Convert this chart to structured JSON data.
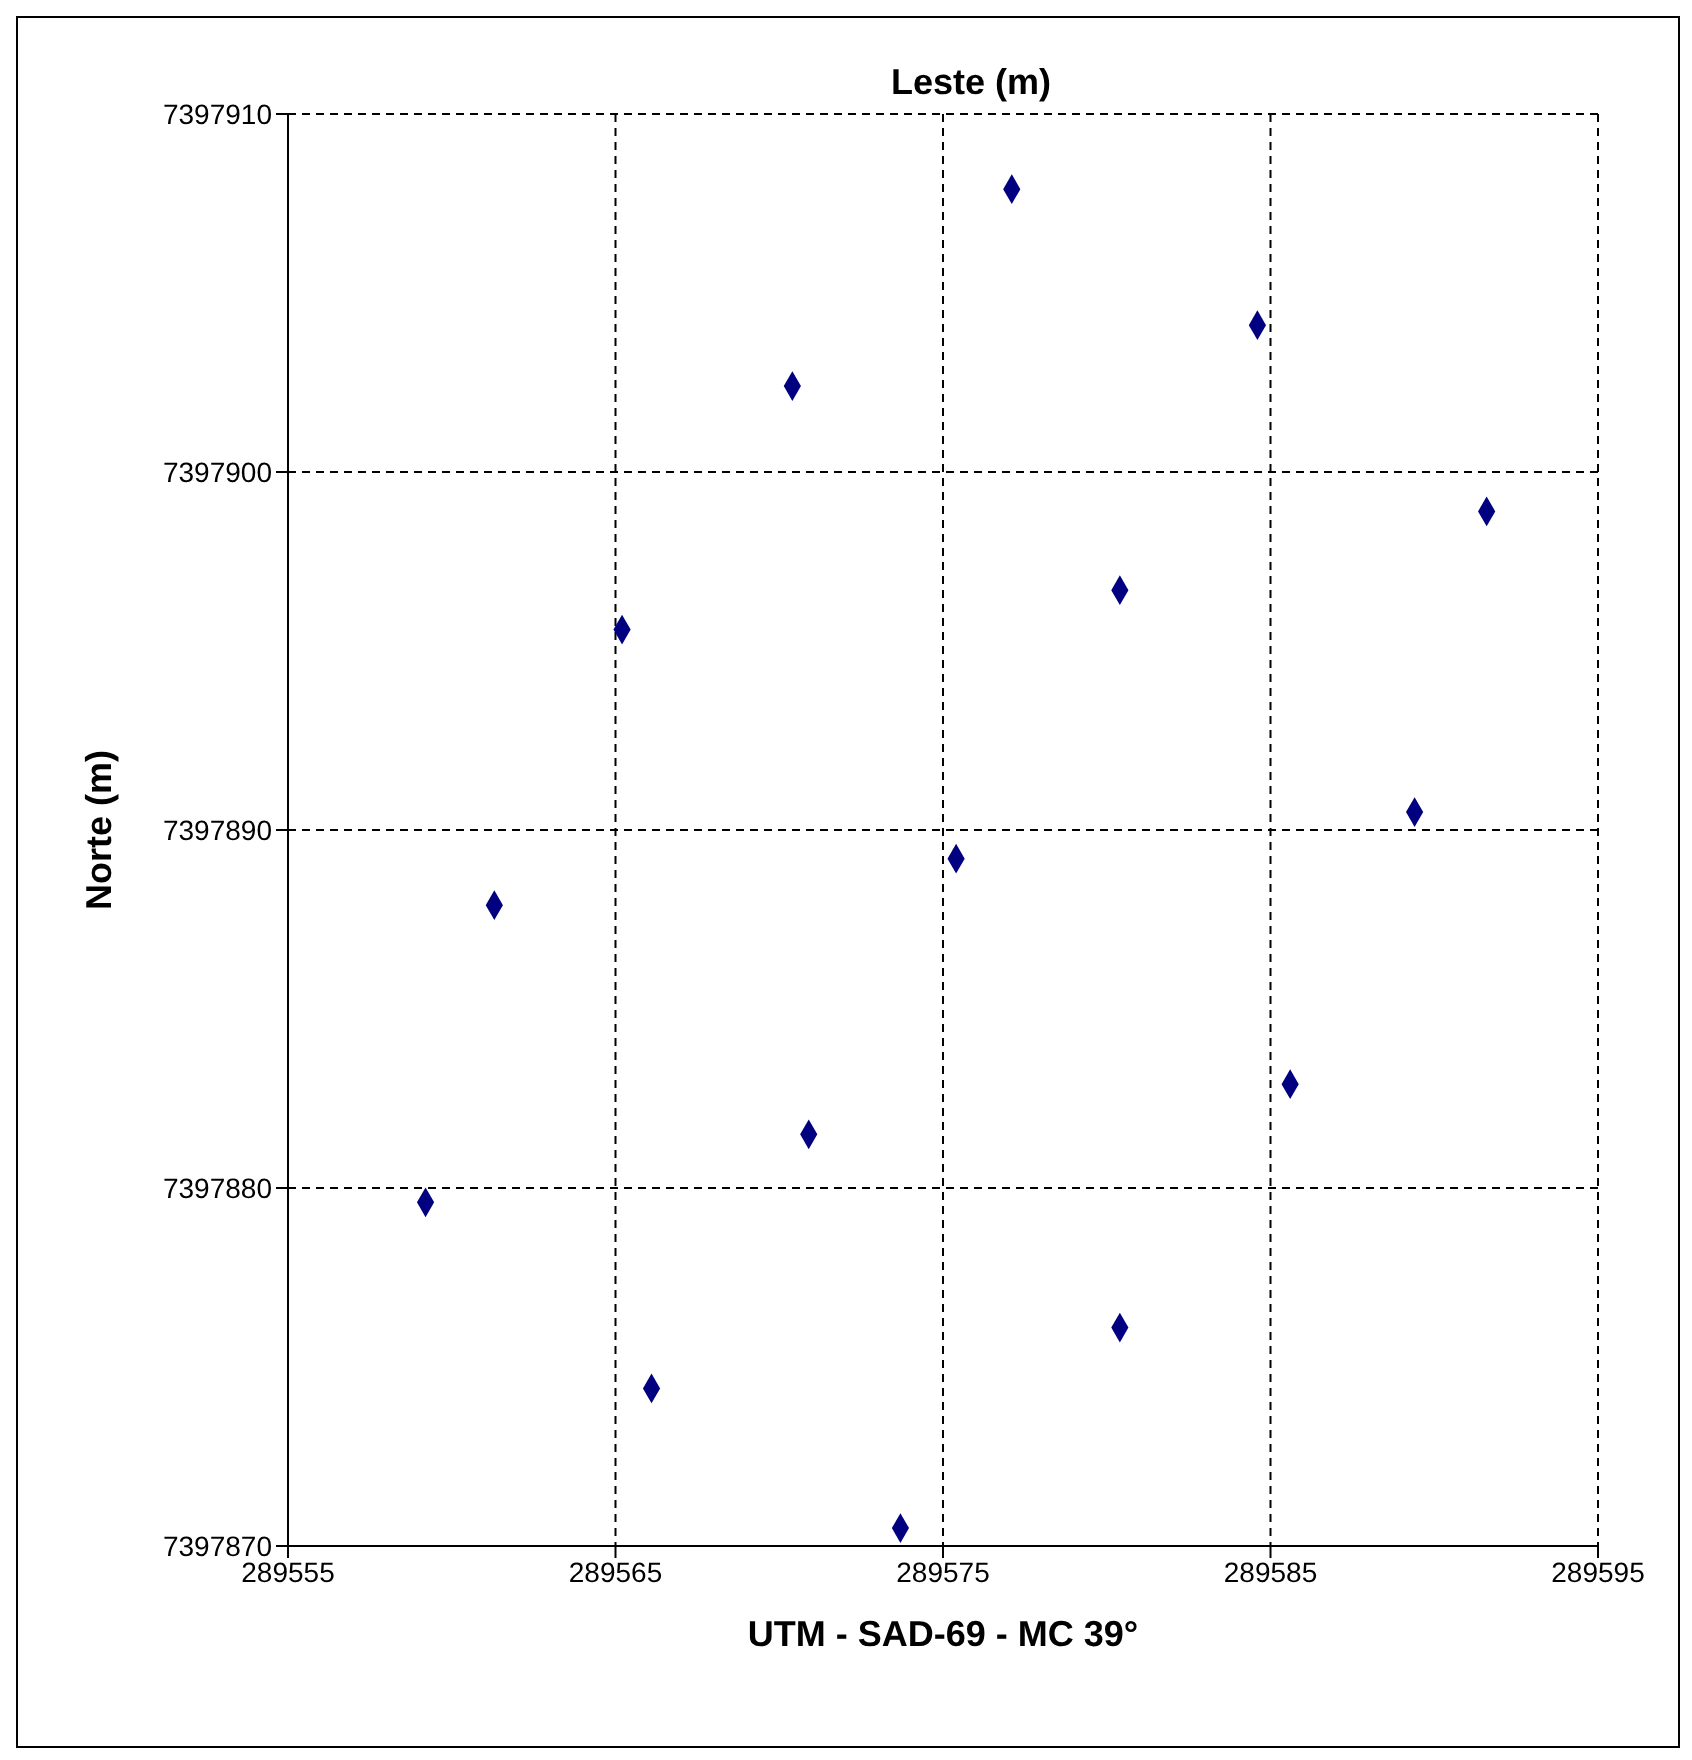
{
  "chart_data": {
    "type": "scatter",
    "title": "Leste (m)",
    "xlabel": "UTM - SAD-69 - MC 39°",
    "ylabel": "Norte (m)",
    "x": [
      289559.2,
      289561.3,
      289565.2,
      289566.1,
      289570.4,
      289570.9,
      289573.7,
      289575.4,
      289577.1,
      289580.4,
      289580.4,
      289584.6,
      289585.6,
      289589.4,
      289591.6
    ],
    "series": [
      {
        "color": "#000080",
        "values": [
          7397879.6,
          7397887.9,
          7397895.6,
          7397874.4,
          7397902.4,
          7397881.5,
          7397870.5,
          7397889.2,
          7397907.9,
          7397896.7,
          7397876.1,
          7397904.1,
          7397882.9,
          7397890.5,
          7397898.9
        ]
      }
    ],
    "xlim": [
      289555,
      289595
    ],
    "xticks": [
      289555,
      289565,
      289575,
      289585,
      289595
    ],
    "ylim": [
      7397870,
      7397910
    ],
    "yticks": [
      7397870,
      7397880,
      7397890,
      7397900,
      7397910
    ],
    "grid": true,
    "marker": "diamond"
  }
}
